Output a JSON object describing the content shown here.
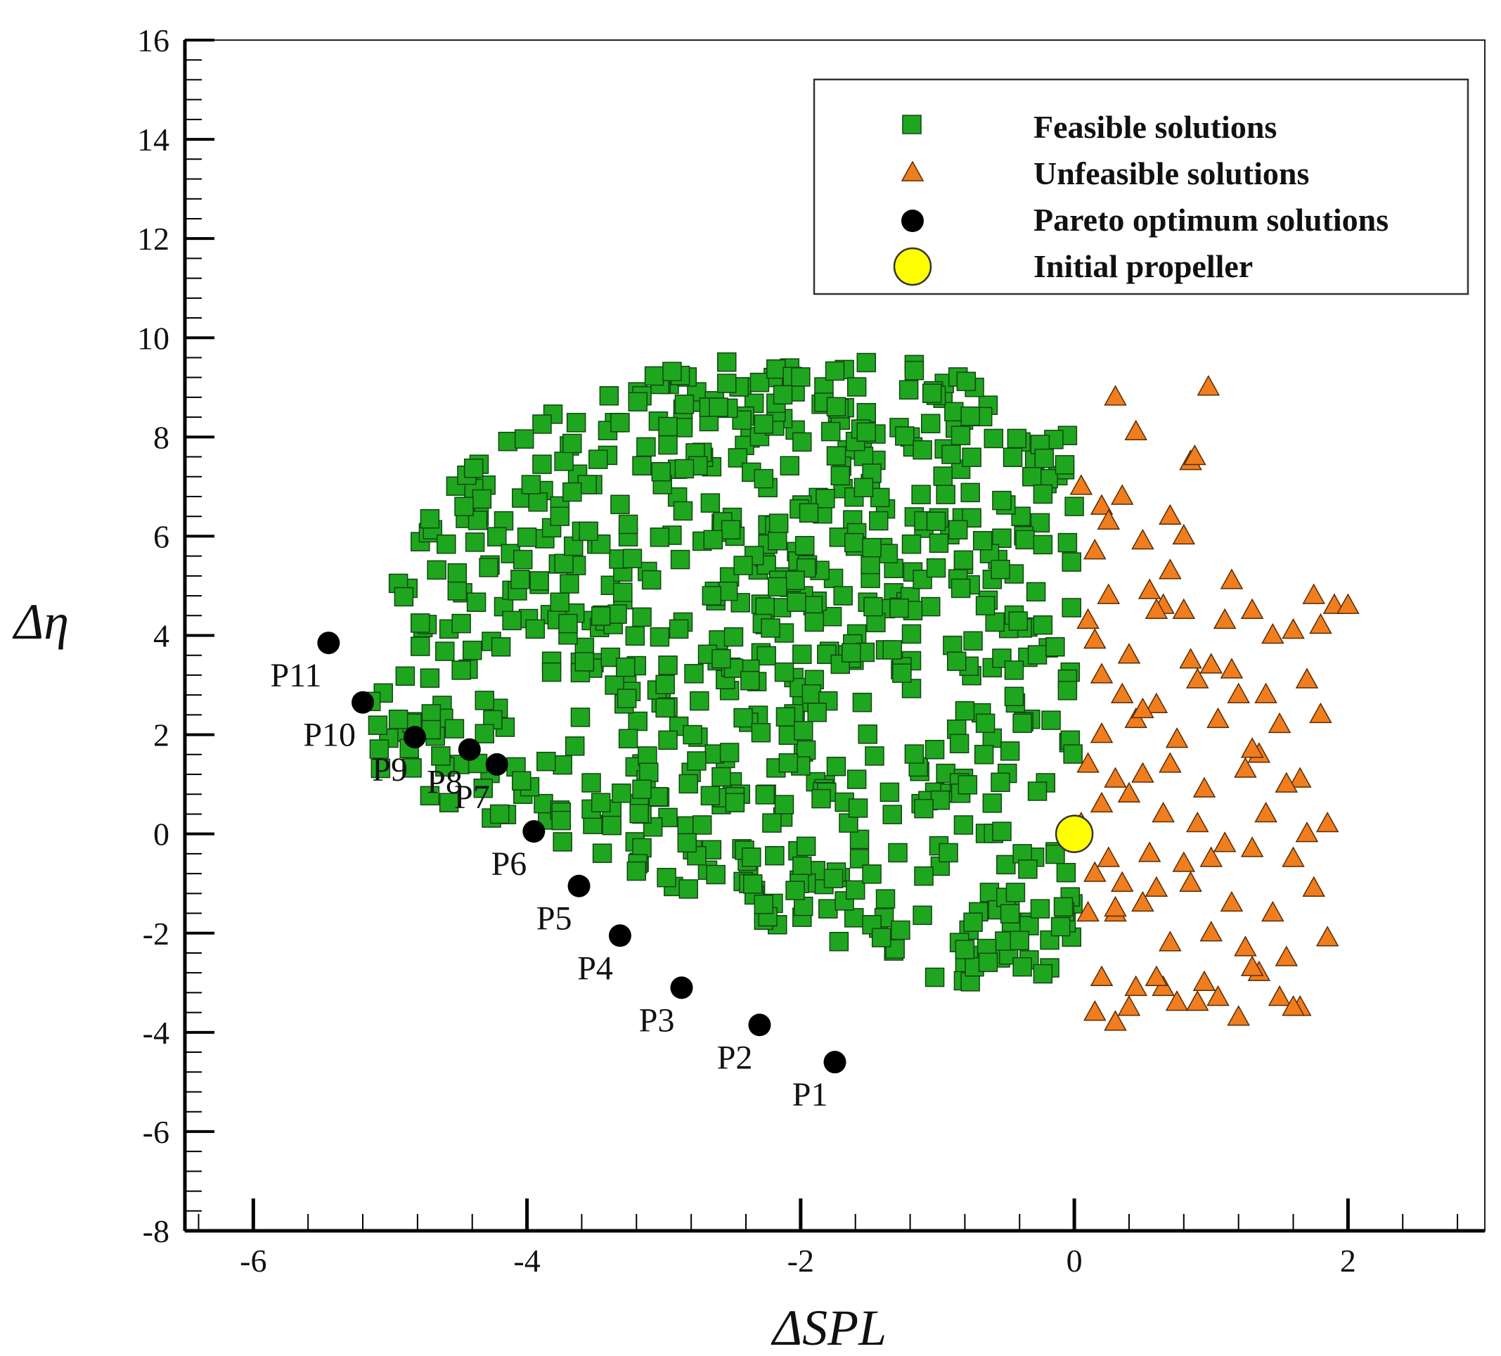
{
  "chart_data": {
    "type": "scatter",
    "title": "",
    "xlabel": "ΔSPL",
    "ylabel": "Δη",
    "xlim": [
      -6.5,
      3
    ],
    "ylim": [
      -8,
      16
    ],
    "xticks": [
      -6,
      -4,
      -2,
      0,
      2
    ],
    "yticks": [
      -8,
      -6,
      -4,
      -2,
      0,
      2,
      4,
      6,
      8,
      10,
      12,
      14,
      16
    ],
    "grid": false,
    "legend_position": "top-right",
    "colors": {
      "feasible": "#1fa61f",
      "unfeasible": "#f07d1e",
      "pareto": "#000000",
      "initial": "#ffff00"
    },
    "series": [
      {
        "name": "Feasible solutions",
        "marker": "square",
        "x": [],
        "y": []
      },
      {
        "name": "Unfeasible solutions",
        "marker": "triangle",
        "x": [
          0.05,
          0.2,
          0.3,
          0.5,
          0.7,
          0.85,
          0.1,
          0.25,
          0.4,
          0.55,
          0.65,
          0.8,
          1.0,
          1.15,
          1.3,
          1.45,
          1.6,
          1.75,
          1.9,
          2.0,
          0.15,
          0.35,
          0.6,
          0.9,
          1.2,
          1.5,
          1.8,
          0.2,
          0.45,
          0.75,
          1.05,
          1.35,
          1.65,
          0.1,
          0.3,
          0.5,
          0.7,
          0.95,
          1.25,
          1.55,
          1.85,
          0.2,
          0.4,
          0.65,
          0.9,
          1.1,
          1.4,
          1.7,
          0.05,
          0.25,
          0.55,
          0.8,
          1.0,
          1.3,
          1.6,
          0.15,
          0.35,
          0.6,
          0.85,
          1.15,
          1.45,
          1.75,
          0.1,
          0.3,
          0.5,
          0.7,
          1.0,
          1.25,
          1.55,
          1.85,
          0.2,
          0.45,
          0.75,
          1.05,
          1.35,
          1.65,
          0.15,
          0.4,
          0.65,
          0.9,
          1.2,
          1.5,
          0.3,
          0.6,
          0.95,
          1.3,
          1.6,
          0.35,
          0.7,
          1.1,
          1.4,
          0.3,
          0.98,
          0.88,
          0.45,
          0.15,
          0.25,
          0.6,
          0.8,
          1.15,
          1.7,
          0.2,
          0.5,
          0.85,
          1.3,
          1.8
        ],
        "y": [
          7.0,
          6.6,
          8.8,
          5.9,
          6.4,
          7.5,
          4.3,
          4.8,
          3.6,
          4.9,
          4.6,
          4.5,
          3.4,
          3.3,
          4.5,
          4.0,
          4.1,
          4.8,
          4.6,
          4.6,
          3.9,
          2.8,
          2.6,
          3.1,
          2.8,
          2.2,
          2.4,
          2.0,
          2.3,
          1.9,
          2.3,
          1.6,
          1.1,
          1.4,
          1.1,
          1.2,
          1.4,
          0.9,
          1.3,
          1.0,
          0.2,
          0.6,
          0.8,
          0.4,
          0.2,
          -0.2,
          0.4,
          0.0,
          0.2,
          -0.5,
          -0.4,
          -0.6,
          -0.5,
          -0.3,
          -0.5,
          -0.8,
          -1.0,
          -1.1,
          -1.0,
          -1.4,
          -1.6,
          -1.1,
          -1.6,
          -1.6,
          -1.4,
          -2.2,
          -2.0,
          -2.3,
          -2.5,
          -2.1,
          -2.9,
          -3.1,
          -3.4,
          -3.3,
          -2.8,
          -3.5,
          -3.6,
          -3.5,
          -3.1,
          -3.4,
          -3.7,
          -3.3,
          -3.8,
          -2.9,
          -3.0,
          -2.7,
          -3.5,
          6.8,
          5.3,
          4.3,
          2.8,
          -1.5,
          9.0,
          7.6,
          8.1,
          5.7,
          6.3,
          4.5,
          6.0,
          5.1,
          3.1,
          3.2,
          2.5,
          3.5,
          1.7,
          4.2
        ]
      },
      {
        "name": "Pareto optimum solutions",
        "marker": "circle",
        "x": [
          -1.75,
          -2.3,
          -2.87,
          -3.32,
          -3.62,
          -3.95,
          -4.22,
          -4.42,
          -4.82,
          -5.2,
          -5.45
        ],
        "y": [
          -4.6,
          -3.85,
          -3.1,
          -2.05,
          -1.05,
          0.05,
          1.4,
          1.7,
          1.95,
          2.65,
          3.85
        ]
      },
      {
        "name": "Initial propeller",
        "marker": "circle-large",
        "x": [
          0.0
        ],
        "y": [
          0.0
        ]
      }
    ],
    "annotations": [
      {
        "text": "P1",
        "x": -1.75,
        "y": -4.6
      },
      {
        "text": "P2",
        "x": -2.3,
        "y": -3.85
      },
      {
        "text": "P3",
        "x": -2.87,
        "y": -3.1
      },
      {
        "text": "P4",
        "x": -3.32,
        "y": -2.05
      },
      {
        "text": "P5",
        "x": -3.62,
        "y": -1.05
      },
      {
        "text": "P6",
        "x": -3.95,
        "y": 0.05
      },
      {
        "text": "P7",
        "x": -4.22,
        "y": 1.4
      },
      {
        "text": "P8",
        "x": -4.42,
        "y": 1.7
      },
      {
        "text": "P9",
        "x": -4.82,
        "y": 1.95
      },
      {
        "text": "P10",
        "x": -5.2,
        "y": 2.65
      },
      {
        "text": "P11",
        "x": -5.45,
        "y": 3.85
      }
    ]
  }
}
